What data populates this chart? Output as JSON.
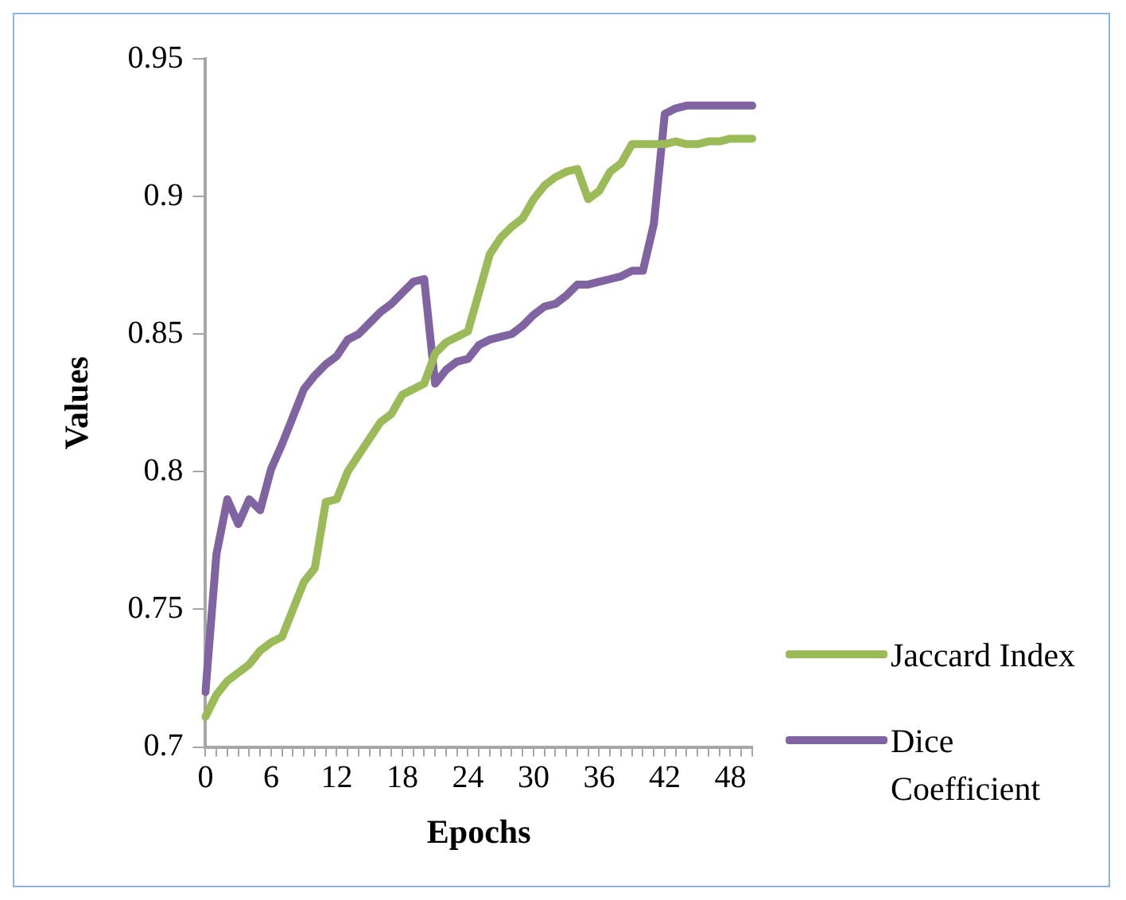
{
  "chart_data": {
    "type": "line",
    "xlabel": "Epochs",
    "ylabel": "Values",
    "categories": [
      "0",
      null,
      null,
      null,
      null,
      null,
      "6",
      null,
      null,
      null,
      null,
      null,
      "12",
      null,
      null,
      null,
      null,
      null,
      "18",
      null,
      null,
      null,
      null,
      null,
      "24",
      null,
      null,
      null,
      null,
      null,
      "30",
      null,
      null,
      null,
      null,
      null,
      "36",
      null,
      null,
      null,
      null,
      null,
      "42",
      null,
      null,
      null,
      null,
      null,
      "48",
      null,
      null
    ],
    "series": [
      {
        "name": "Jaccard Index",
        "color": "#9bbb59",
        "values": [
          0.711,
          0.719,
          0.724,
          0.727,
          0.73,
          0.735,
          0.738,
          0.74,
          0.75,
          0.76,
          0.765,
          0.789,
          0.79,
          0.8,
          0.806,
          0.812,
          0.818,
          0.821,
          0.828,
          0.83,
          0.832,
          0.843,
          0.847,
          0.849,
          0.851,
          0.865,
          0.879,
          0.885,
          0.889,
          0.892,
          0.899,
          0.904,
          0.907,
          0.909,
          0.91,
          0.899,
          0.902,
          0.909,
          0.912,
          0.919,
          0.919,
          0.919,
          0.919,
          0.92,
          0.919,
          0.919,
          0.92,
          0.92,
          0.921,
          0.921,
          0.921
        ]
      },
      {
        "name": "Dice Coefficient",
        "color": "#8064a2",
        "values": [
          0.72,
          0.77,
          0.79,
          0.781,
          0.79,
          0.786,
          0.801,
          0.81,
          0.82,
          0.83,
          0.835,
          0.839,
          0.842,
          0.848,
          0.85,
          0.854,
          0.858,
          0.861,
          0.865,
          0.869,
          0.87,
          0.832,
          0.837,
          0.84,
          0.841,
          0.846,
          0.848,
          0.849,
          0.85,
          0.853,
          0.857,
          0.86,
          0.861,
          0.864,
          0.868,
          0.868,
          0.869,
          0.87,
          0.871,
          0.873,
          0.873,
          0.89,
          0.93,
          0.932,
          0.933,
          0.933,
          0.933,
          0.933,
          0.933,
          0.933,
          0.933
        ]
      }
    ],
    "ylim": [
      0.7,
      0.95
    ],
    "yticks": [
      0.7,
      0.75,
      0.8,
      0.85,
      0.9,
      0.95
    ],
    "grid": false,
    "legend": "right",
    "marker": "none",
    "line_style": "solid"
  }
}
